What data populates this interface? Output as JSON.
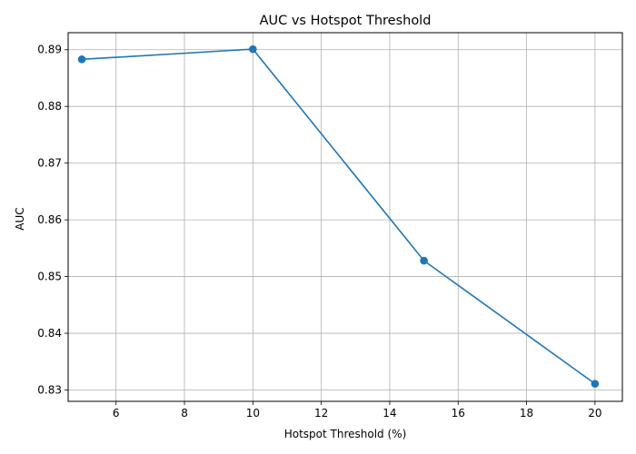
{
  "chart_data": {
    "type": "line",
    "title": "AUC vs Hotspot Threshold",
    "xlabel": "Hotspot Threshold (%)",
    "ylabel": "AUC",
    "xlim": [
      4.6,
      20.8
    ],
    "ylim": [
      0.828,
      0.893
    ],
    "xticks": [
      6,
      8,
      10,
      12,
      14,
      16,
      18,
      20
    ],
    "yticks": [
      0.83,
      0.84,
      0.85,
      0.86,
      0.87,
      0.88,
      0.89
    ],
    "xtick_labels": [
      "6",
      "8",
      "10",
      "12",
      "14",
      "16",
      "18",
      "20"
    ],
    "ytick_labels": [
      "0.83",
      "0.84",
      "0.85",
      "0.86",
      "0.87",
      "0.88",
      "0.89"
    ],
    "grid": true,
    "series": [
      {
        "x": [
          5,
          10,
          15,
          20
        ],
        "y": [
          0.8883,
          0.8901,
          0.8528,
          0.8311
        ],
        "color": "#1f77b4",
        "marker": "circle"
      }
    ]
  }
}
